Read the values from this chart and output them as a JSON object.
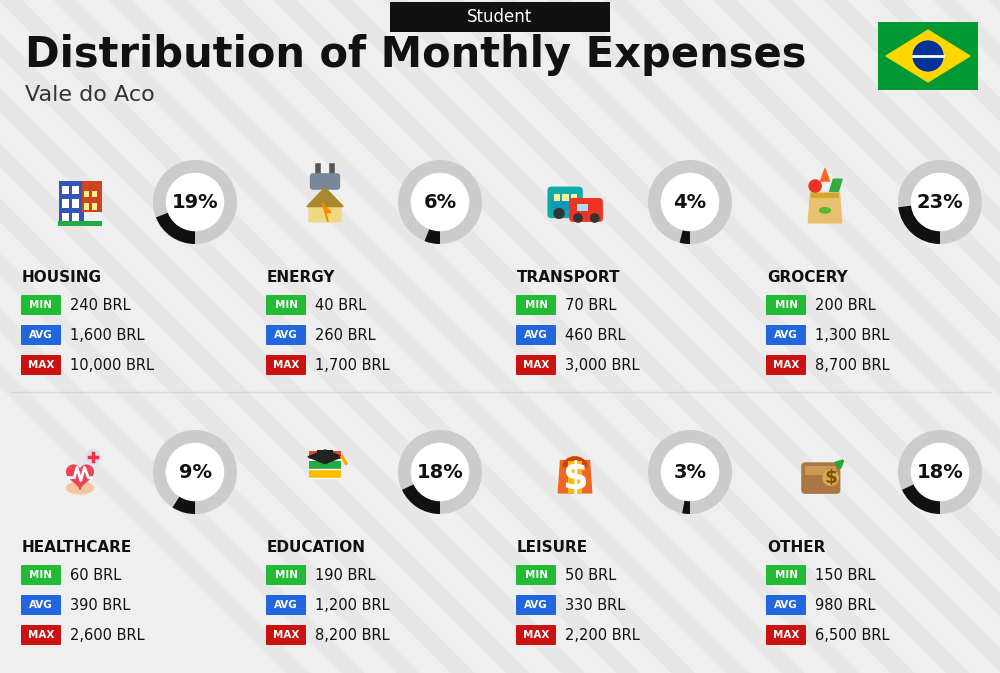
{
  "title": "Distribution of Monthly Expenses",
  "subtitle": "Vale do Aco",
  "header_label": "Student",
  "bg_color": "#efefef",
  "categories": [
    {
      "name": "HOUSING",
      "pct": 19,
      "min": "240 BRL",
      "avg": "1,600 BRL",
      "max": "10,000 BRL",
      "icon": "housing",
      "row": 0,
      "col": 0
    },
    {
      "name": "ENERGY",
      "pct": 6,
      "min": "40 BRL",
      "avg": "260 BRL",
      "max": "1,700 BRL",
      "icon": "energy",
      "row": 0,
      "col": 1
    },
    {
      "name": "TRANSPORT",
      "pct": 4,
      "min": "70 BRL",
      "avg": "460 BRL",
      "max": "3,000 BRL",
      "icon": "transport",
      "row": 0,
      "col": 2
    },
    {
      "name": "GROCERY",
      "pct": 23,
      "min": "200 BRL",
      "avg": "1,300 BRL",
      "max": "8,700 BRL",
      "icon": "grocery",
      "row": 0,
      "col": 3
    },
    {
      "name": "HEALTHCARE",
      "pct": 9,
      "min": "60 BRL",
      "avg": "390 BRL",
      "max": "2,600 BRL",
      "icon": "healthcare",
      "row": 1,
      "col": 0
    },
    {
      "name": "EDUCATION",
      "pct": 18,
      "min": "190 BRL",
      "avg": "1,200 BRL",
      "max": "8,200 BRL",
      "icon": "education",
      "row": 1,
      "col": 1
    },
    {
      "name": "LEISURE",
      "pct": 3,
      "min": "50 BRL",
      "avg": "330 BRL",
      "max": "2,200 BRL",
      "icon": "leisure",
      "row": 1,
      "col": 2
    },
    {
      "name": "OTHER",
      "pct": 18,
      "min": "150 BRL",
      "avg": "980 BRL",
      "max": "6,500 BRL",
      "icon": "other",
      "row": 1,
      "col": 3
    }
  ],
  "min_color": "#22bb33",
  "avg_color": "#2266dd",
  "max_color": "#cc1111",
  "circle_color_filled": "#111111",
  "circle_color_empty": "#cccccc",
  "stripe_color": "#e0e0e0",
  "flag_green": "#009933",
  "flag_yellow": "#FFD700",
  "flag_blue": "#003399"
}
